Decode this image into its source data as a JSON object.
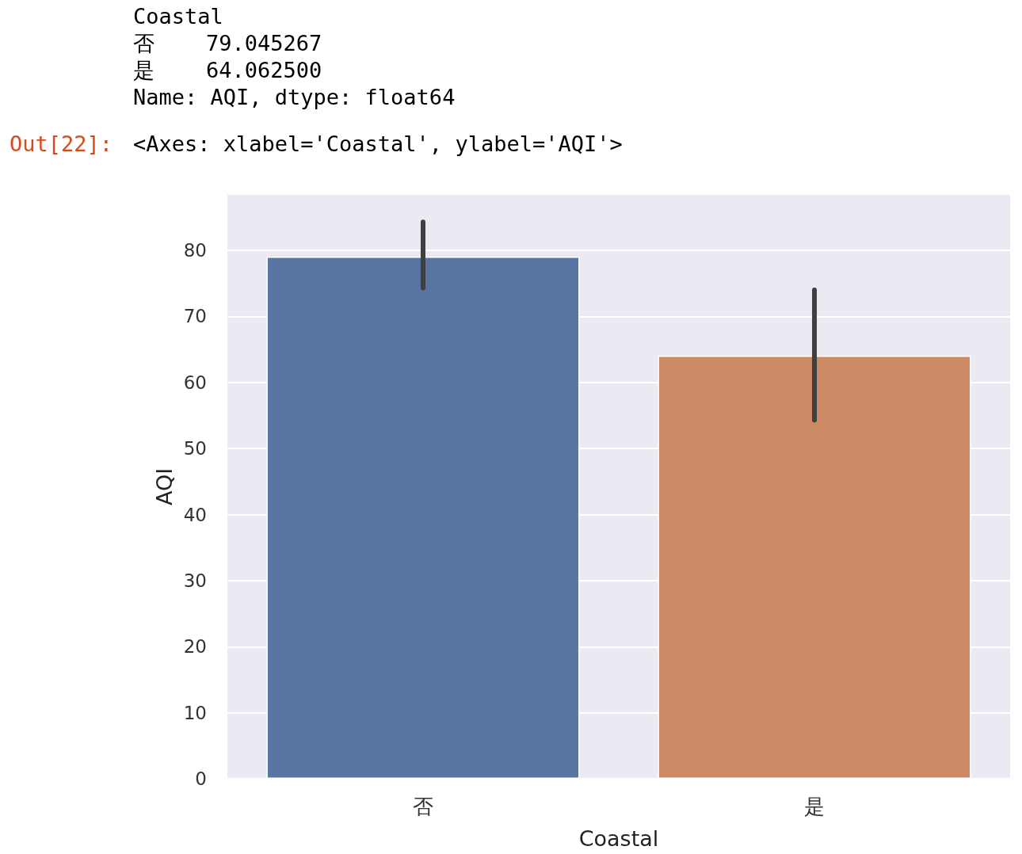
{
  "chart_data": {
    "type": "bar",
    "xlabel": "Coastal",
    "ylabel": "AQI",
    "categories": [
      "否",
      "是"
    ],
    "values": [
      79.045267,
      64.0625
    ],
    "colors": [
      "#5975a4",
      "#cc8963"
    ],
    "errors": [
      [
        74.3,
        84.3
      ],
      [
        54.3,
        74.0
      ]
    ],
    "ylim": [
      0,
      88.4
    ],
    "yticks": [
      0,
      10,
      20,
      30,
      40,
      50,
      60,
      70,
      80
    ],
    "grid": "y",
    "annotations": [
      "Coastal",
      "否    79.045267",
      "是    64.062500",
      "Name: AQI, dtype: float64",
      "Out[22]:",
      "<Axes: xlabel='Coastal', ylabel='AQI'>"
    ]
  }
}
